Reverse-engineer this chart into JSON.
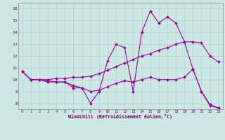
{
  "xlabel": "Windchill (Refroidissement éolien,°C)",
  "background_color": "#cce8e4",
  "line_color": "#990099",
  "grid_color": "#aacccc",
  "x_ticks": [
    0,
    1,
    2,
    3,
    4,
    5,
    6,
    7,
    8,
    9,
    10,
    11,
    12,
    13,
    14,
    15,
    16,
    17,
    18,
    19,
    20,
    21,
    22,
    23
  ],
  "y_ticks": [
    8,
    9,
    10,
    11,
    12,
    13,
    14,
    15,
    16
  ],
  "xlim": [
    -0.5,
    23.5
  ],
  "ylim": [
    7.5,
    16.5
  ],
  "series": [
    [
      10.7,
      10.0,
      10.0,
      9.8,
      9.8,
      9.8,
      9.3,
      9.3,
      8.0,
      9.0,
      11.6,
      13.0,
      12.7,
      9.0,
      14.0,
      15.8,
      14.8,
      15.3,
      14.8,
      13.2,
      10.9,
      9.0,
      7.8,
      7.6
    ],
    [
      10.7,
      10.0,
      10.0,
      10.0,
      10.1,
      10.1,
      10.2,
      10.2,
      10.3,
      10.5,
      10.8,
      11.1,
      11.4,
      11.7,
      12.0,
      12.2,
      12.5,
      12.7,
      13.0,
      13.2,
      13.2,
      13.1,
      12.0,
      11.5
    ],
    [
      10.7,
      10.0,
      10.0,
      9.9,
      9.8,
      9.8,
      9.5,
      9.3,
      9.0,
      9.1,
      9.4,
      9.7,
      9.9,
      9.8,
      10.0,
      10.2,
      10.0,
      10.0,
      10.0,
      10.2,
      10.9,
      9.0,
      7.9,
      7.6
    ]
  ]
}
